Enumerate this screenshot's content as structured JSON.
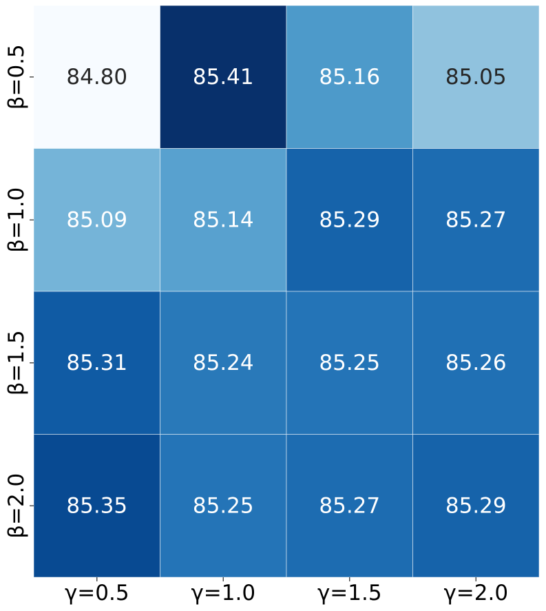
{
  "chart_data": {
    "type": "heatmap",
    "title": "",
    "xlabel": "",
    "ylabel": "",
    "x_categories": [
      "γ=0.5",
      "γ=1.0",
      "γ=1.5",
      "γ=2.0"
    ],
    "y_categories": [
      "β=0.5",
      "β=1.0",
      "β=1.5",
      "β=2.0"
    ],
    "values": [
      [
        84.8,
        85.41,
        85.16,
        85.05
      ],
      [
        85.09,
        85.14,
        85.29,
        85.27
      ],
      [
        85.31,
        85.24,
        85.25,
        85.26
      ],
      [
        85.35,
        85.25,
        85.27,
        85.29
      ]
    ],
    "value_labels": [
      [
        "84.80",
        "85.41",
        "85.16",
        "85.05"
      ],
      [
        "85.09",
        "85.14",
        "85.29",
        "85.27"
      ],
      [
        "85.31",
        "85.24",
        "85.25",
        "85.26"
      ],
      [
        "85.35",
        "85.25",
        "85.27",
        "85.29"
      ]
    ],
    "colormap": "Blues",
    "vmin": 84.8,
    "vmax": 85.41,
    "colorbar": false,
    "label_colors": {
      "light_cells": "#262626",
      "dark_cells": "#ffffff"
    }
  }
}
